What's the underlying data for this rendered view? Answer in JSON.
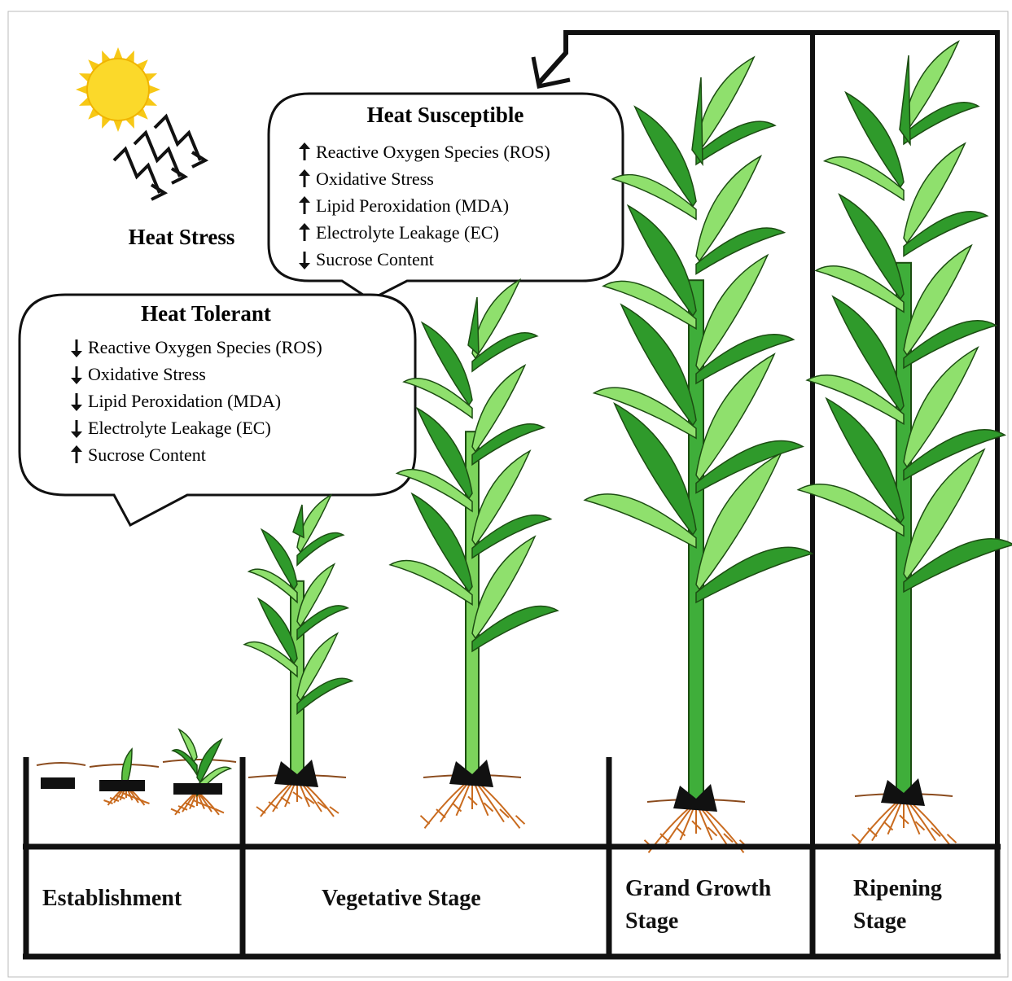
{
  "heat_stress": {
    "label": "Heat Stress"
  },
  "susceptible": {
    "title": "Heat Susceptible",
    "items": [
      "Reactive Oxygen Species (ROS)",
      "Oxidative Stress",
      "Lipid Peroxidation (MDA)",
      "Electrolyte Leakage (EC)",
      "Sucrose Content"
    ]
  },
  "tolerant": {
    "title": "Heat Tolerant",
    "items": [
      "Reactive Oxygen Species (ROS)",
      "Oxidative Stress",
      "Lipid Peroxidation (MDA)",
      "Electrolyte Leakage (EC)",
      "Sucrose Content"
    ]
  },
  "stages": [
    "Establishment",
    "Vegetative Stage",
    "Grand Growth Stage",
    "Ripening Stage"
  ]
}
